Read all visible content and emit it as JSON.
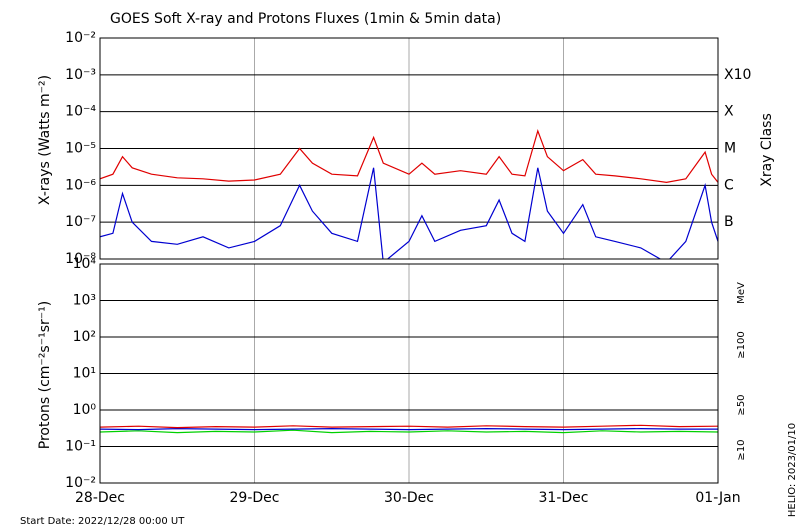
{
  "chart_data": [
    {
      "type": "line",
      "title": "GOES Soft X-ray and Protons Fluxes   (1min & 5min data)",
      "ylabel": "X-rays (Watts m⁻²)",
      "y2label": "Xray Class",
      "log_scale": true,
      "grid": true,
      "xlim": [
        0,
        96
      ],
      "ylim": [
        1e-08,
        0.01
      ],
      "y2lim": [
        1e-08,
        0.01
      ],
      "yticks": [
        {
          "value": 1e-08,
          "label": "10⁻⁸"
        },
        {
          "value": 1e-07,
          "label": "10⁻⁷"
        },
        {
          "value": 1e-06,
          "label": "10⁻⁶"
        },
        {
          "value": 1e-05,
          "label": "10⁻⁵"
        },
        {
          "value": 0.0001,
          "label": "10⁻⁴"
        },
        {
          "value": 0.001,
          "label": "10⁻³"
        },
        {
          "value": 0.01,
          "label": "10⁻²"
        }
      ],
      "y2ticks": [
        {
          "value": 1e-07,
          "label": "B"
        },
        {
          "value": 1e-06,
          "label": "C"
        },
        {
          "value": 1e-05,
          "label": "M"
        },
        {
          "value": 0.0001,
          "label": "X"
        },
        {
          "value": 0.001,
          "label": "X10"
        }
      ],
      "x": [
        0,
        2,
        3.5,
        5,
        8,
        12,
        16,
        20,
        24,
        28,
        31,
        33,
        36,
        40,
        42.5,
        44,
        48,
        50,
        52,
        56,
        60,
        62,
        64,
        66,
        68,
        69.5,
        72,
        75,
        77,
        80,
        84,
        88,
        91,
        94,
        95,
        96
      ],
      "series": [
        {
          "color": "#e00000",
          "values": [
            1.5e-06,
            2e-06,
            6e-06,
            3e-06,
            2e-06,
            1.6e-06,
            1.5e-06,
            1.3e-06,
            1.4e-06,
            2e-06,
            1e-05,
            4e-06,
            2e-06,
            1.8e-06,
            2e-05,
            4e-06,
            2e-06,
            4e-06,
            2e-06,
            2.5e-06,
            2e-06,
            6e-06,
            2e-06,
            1.8e-06,
            3e-05,
            6e-06,
            2.5e-06,
            5e-06,
            2e-06,
            1.8e-06,
            1.5e-06,
            1.2e-06,
            1.5e-06,
            8e-06,
            2e-06,
            1.2e-06
          ]
        },
        {
          "color": "#0000d0",
          "values": [
            4e-08,
            5e-08,
            6e-07,
            1e-07,
            3e-08,
            2.5e-08,
            4e-08,
            2e-08,
            3e-08,
            8e-08,
            1e-06,
            2e-07,
            5e-08,
            3e-08,
            3e-06,
            8e-09,
            3e-08,
            1.5e-07,
            3e-08,
            6e-08,
            8e-08,
            4e-07,
            5e-08,
            3e-08,
            3e-06,
            2e-07,
            5e-08,
            3e-07,
            4e-08,
            3e-08,
            2e-08,
            8e-09,
            3e-08,
            1e-06,
            1e-07,
            3e-08
          ]
        }
      ]
    },
    {
      "type": "line",
      "ylabel": "Protons (cm⁻²s⁻¹sr⁻¹)",
      "unit": "MeV",
      "log_scale": true,
      "grid": true,
      "xlim": [
        0,
        96
      ],
      "ylim": [
        0.01,
        10000.0
      ],
      "dashed_line": 10,
      "xticks": [
        {
          "value": 0,
          "label": "28-Dec"
        },
        {
          "value": 24,
          "label": "29-Dec"
        },
        {
          "value": 48,
          "label": "30-Dec"
        },
        {
          "value": 72,
          "label": "31-Dec"
        },
        {
          "value": 96,
          "label": "01-Jan"
        }
      ],
      "yticks": [
        {
          "value": 0.01,
          "label": "10⁻²"
        },
        {
          "value": 0.1,
          "label": "10⁻¹"
        },
        {
          "value": 1,
          "label": "10⁰"
        },
        {
          "value": 10,
          "label": "10¹"
        },
        {
          "value": 100,
          "label": "10²"
        },
        {
          "value": 1000,
          "label": "10³"
        },
        {
          "value": 10000,
          "label": "10⁴"
        }
      ],
      "x": [
        0,
        6,
        12,
        18,
        24,
        30,
        36,
        42,
        48,
        54,
        60,
        66,
        72,
        78,
        84,
        90,
        96
      ],
      "series": [
        {
          "name": "≥100",
          "color": "#00d000",
          "values": [
            0.25,
            0.27,
            0.24,
            0.26,
            0.25,
            0.28,
            0.24,
            0.26,
            0.25,
            0.27,
            0.25,
            0.26,
            0.24,
            0.27,
            0.25,
            0.26,
            0.25
          ]
        },
        {
          "name": "≥50",
          "color": "#0000d0",
          "values": [
            0.3,
            0.29,
            0.31,
            0.3,
            0.29,
            0.3,
            0.31,
            0.3,
            0.29,
            0.3,
            0.31,
            0.3,
            0.29,
            0.3,
            0.31,
            0.3,
            0.3
          ]
        },
        {
          "name": "≥10",
          "color": "#e00000",
          "values": [
            0.34,
            0.36,
            0.33,
            0.35,
            0.34,
            0.37,
            0.34,
            0.35,
            0.36,
            0.34,
            0.37,
            0.35,
            0.34,
            0.36,
            0.38,
            0.35,
            0.36
          ]
        }
      ]
    }
  ],
  "footer": {
    "start_date": "Start Date: 2022/12/28 00:00 UT",
    "credit": "HELIO: 2023/01/10"
  }
}
